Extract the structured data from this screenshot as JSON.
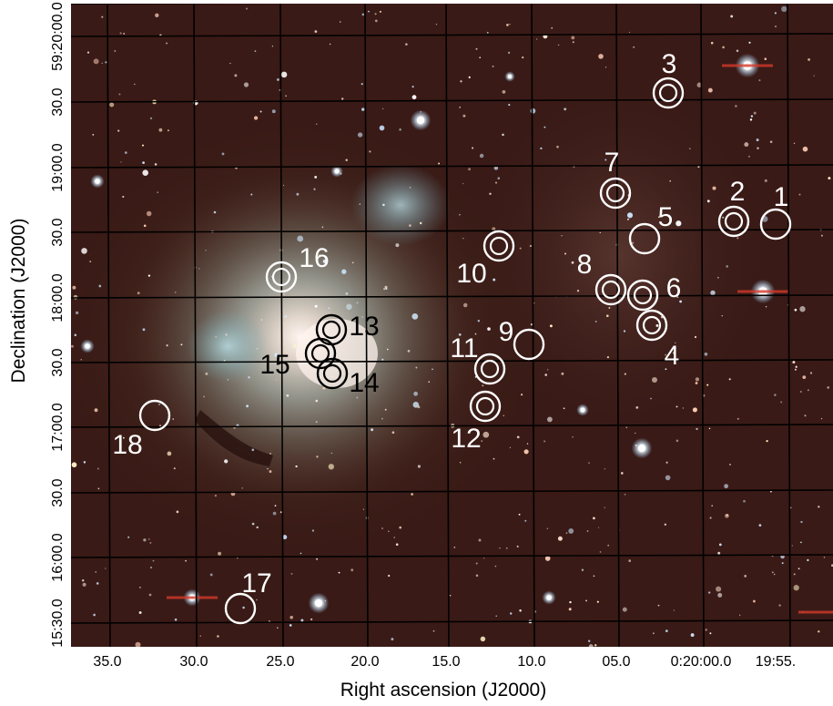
{
  "figure": {
    "x_axis_label": "Right ascension (J2000)",
    "y_axis_label": "Declination (J2000)",
    "x_ticks": [
      "35.0",
      "30.0",
      "25.0",
      "20.0",
      "15.0",
      "10.0",
      "05.0",
      "0:20:00.0",
      "19:55."
    ],
    "y_ticks": [
      "59:20:00.0",
      "30.0",
      "19:00.0",
      "30.0",
      "18:00.0",
      "30.0",
      "17:00.0",
      "30.0",
      "16:00.0",
      "15:30.0"
    ],
    "grid": true,
    "background": "color composite star field with a bright nebula; black coordinate grid overlaid"
  },
  "markers": [
    {
      "label": "1",
      "ring": "single",
      "color": "white"
    },
    {
      "label": "2",
      "ring": "double",
      "color": "white"
    },
    {
      "label": "3",
      "ring": "double",
      "color": "white"
    },
    {
      "label": "4",
      "ring": "double",
      "color": "white"
    },
    {
      "label": "5",
      "ring": "single",
      "color": "white"
    },
    {
      "label": "6",
      "ring": "double",
      "color": "white"
    },
    {
      "label": "7",
      "ring": "double",
      "color": "white"
    },
    {
      "label": "8",
      "ring": "double",
      "color": "white"
    },
    {
      "label": "9",
      "ring": "single",
      "color": "white"
    },
    {
      "label": "10",
      "ring": "double",
      "color": "white"
    },
    {
      "label": "11",
      "ring": "double",
      "color": "white"
    },
    {
      "label": "12",
      "ring": "double",
      "color": "white"
    },
    {
      "label": "13",
      "ring": "double",
      "color": "black"
    },
    {
      "label": "14",
      "ring": "double",
      "color": "black"
    },
    {
      "label": "15",
      "ring": "double",
      "color": "black"
    },
    {
      "label": "16",
      "ring": "double",
      "color": "white"
    },
    {
      "label": "17",
      "ring": "single",
      "color": "white"
    },
    {
      "label": "18",
      "ring": "single",
      "color": "white"
    }
  ]
}
